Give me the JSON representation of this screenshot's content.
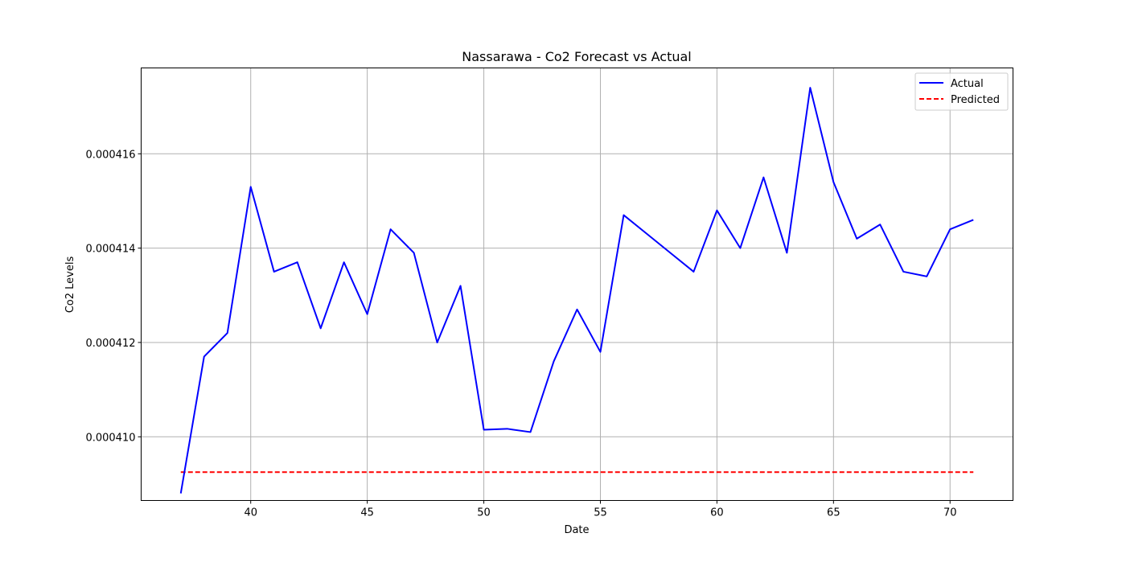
{
  "chart_data": {
    "type": "line",
    "title": "Nassarawa - Co2 Forecast vs Actual",
    "xlabel": "Date",
    "ylabel": "Co2 Levels",
    "xlim": [
      35.3,
      72.7
    ],
    "ylim": [
      0.00040865,
      0.00041782
    ],
    "xticks": [
      40,
      45,
      50,
      55,
      60,
      65,
      70
    ],
    "xtick_labels": [
      "40",
      "45",
      "50",
      "55",
      "60",
      "65",
      "70"
    ],
    "yticks": [
      0.00041,
      0.000412,
      0.000414,
      0.000416
    ],
    "ytick_labels": [
      "0.000410",
      "0.000412",
      "0.000414",
      "0.000416"
    ],
    "grid": true,
    "legend_position": "top-right",
    "x": [
      37,
      38,
      39,
      40,
      41,
      42,
      43,
      44,
      45,
      46,
      47,
      48,
      49,
      50,
      51,
      52,
      53,
      54,
      55,
      56,
      57,
      58,
      59,
      60,
      61,
      62,
      63,
      64,
      65,
      66,
      67,
      68,
      69,
      70,
      71
    ],
    "series": [
      {
        "name": "Actual",
        "color": "#0000ff",
        "style": "solid",
        "values": [
          0.0004088,
          0.0004117,
          0.0004122,
          0.0004153,
          0.0004135,
          0.0004137,
          0.0004123,
          0.0004137,
          0.0004126,
          0.0004144,
          0.0004139,
          0.000412,
          0.0004132,
          0.00041015,
          0.00041017,
          0.0004101,
          0.0004116,
          0.0004127,
          0.0004118,
          0.0004147,
          0.0004143,
          0.0004139,
          0.0004135,
          0.0004148,
          0.000414,
          0.0004155,
          0.0004139,
          0.0004174,
          0.0004154,
          0.0004142,
          0.0004145,
          0.0004135,
          0.0004134,
          0.0004144,
          0.0004146
        ]
      },
      {
        "name": "Predicted",
        "color": "#ff0000",
        "style": "dashed",
        "values": [
          0.00040925,
          0.00040925,
          0.00040925,
          0.00040925,
          0.00040925,
          0.00040925,
          0.00040925,
          0.00040925,
          0.00040925,
          0.00040925,
          0.00040925,
          0.00040925,
          0.00040925,
          0.00040925,
          0.00040925,
          0.00040925,
          0.00040925,
          0.00040925,
          0.00040925,
          0.00040925,
          0.00040925,
          0.00040925,
          0.00040925,
          0.00040925,
          0.00040925,
          0.00040925,
          0.00040925,
          0.00040925,
          0.00040925,
          0.00040925,
          0.00040925,
          0.00040925,
          0.00040925,
          0.00040925,
          0.00040925
        ]
      }
    ]
  }
}
